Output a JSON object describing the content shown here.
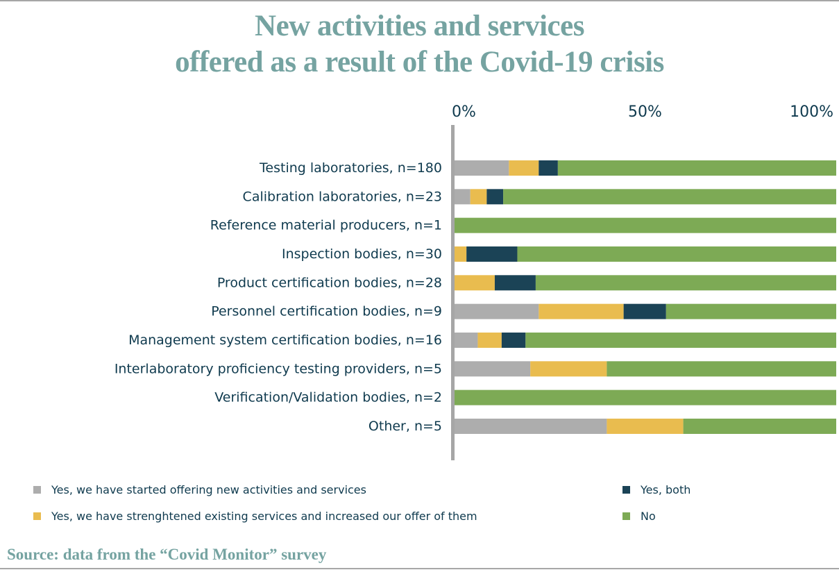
{
  "title": {
    "line1": "New activities and services",
    "line2": "offered as a result of the Covid-19 crisis"
  },
  "source": "Source: data from the “Covid Monitor” survey",
  "chart_data": {
    "type": "bar",
    "orientation": "horizontal",
    "stacked": true,
    "percent": true,
    "title": "New activities and services offered as a result of the Covid-19 crisis",
    "xlabel": "",
    "ylabel": "",
    "xlim": [
      0,
      100
    ],
    "x_ticks": [
      "0%",
      "50%",
      "100%"
    ],
    "x_tick_values": [
      0,
      50,
      100
    ],
    "x_axis_position": "top",
    "grid": false,
    "legend_position": "bottom",
    "categories": [
      "Testing laboratories, n=180",
      "Calibration laboratories, n=23",
      "Reference material producers, n=1",
      "Inspection bodies, n=30",
      "Product certification bodies, n=28",
      "Personnel certification bodies, n=9",
      "Management system certification bodies, n=16",
      "Interlaboratory proficiency testing providers, n=5",
      "Verification/Validation bodies, n=2",
      "Other, n=5"
    ],
    "series": [
      {
        "name": "Yes, we have started offering new activities and services",
        "color": "#adadad",
        "values": [
          14.4,
          4.3,
          0,
          0,
          0,
          22.2,
          6.25,
          20,
          0,
          40
        ]
      },
      {
        "name": "Yes, we have strenghtened existing services and increased our offer of them",
        "color": "#e9bc4f",
        "values": [
          7.8,
          4.3,
          0,
          3.3,
          10.7,
          22.2,
          6.25,
          20,
          0,
          20
        ]
      },
      {
        "name": "Yes, both",
        "color": "#1b4356",
        "values": [
          5.0,
          4.3,
          0,
          13.3,
          10.7,
          11.1,
          6.25,
          0,
          0,
          0
        ]
      },
      {
        "name": "No",
        "color": "#7daa55",
        "values": [
          72.8,
          87.1,
          100,
          83.4,
          78.6,
          44.5,
          81.25,
          60,
          100,
          40
        ]
      }
    ]
  },
  "legend": [
    {
      "label": "Yes, we have started offering new activities and services",
      "color": "#adadad"
    },
    {
      "label": "Yes, we have strenghtened existing services and increased our offer of them",
      "color": "#e9bc4f"
    },
    {
      "label": "Yes, both",
      "color": "#1b4356"
    },
    {
      "label": "No",
      "color": "#7daa55"
    }
  ]
}
